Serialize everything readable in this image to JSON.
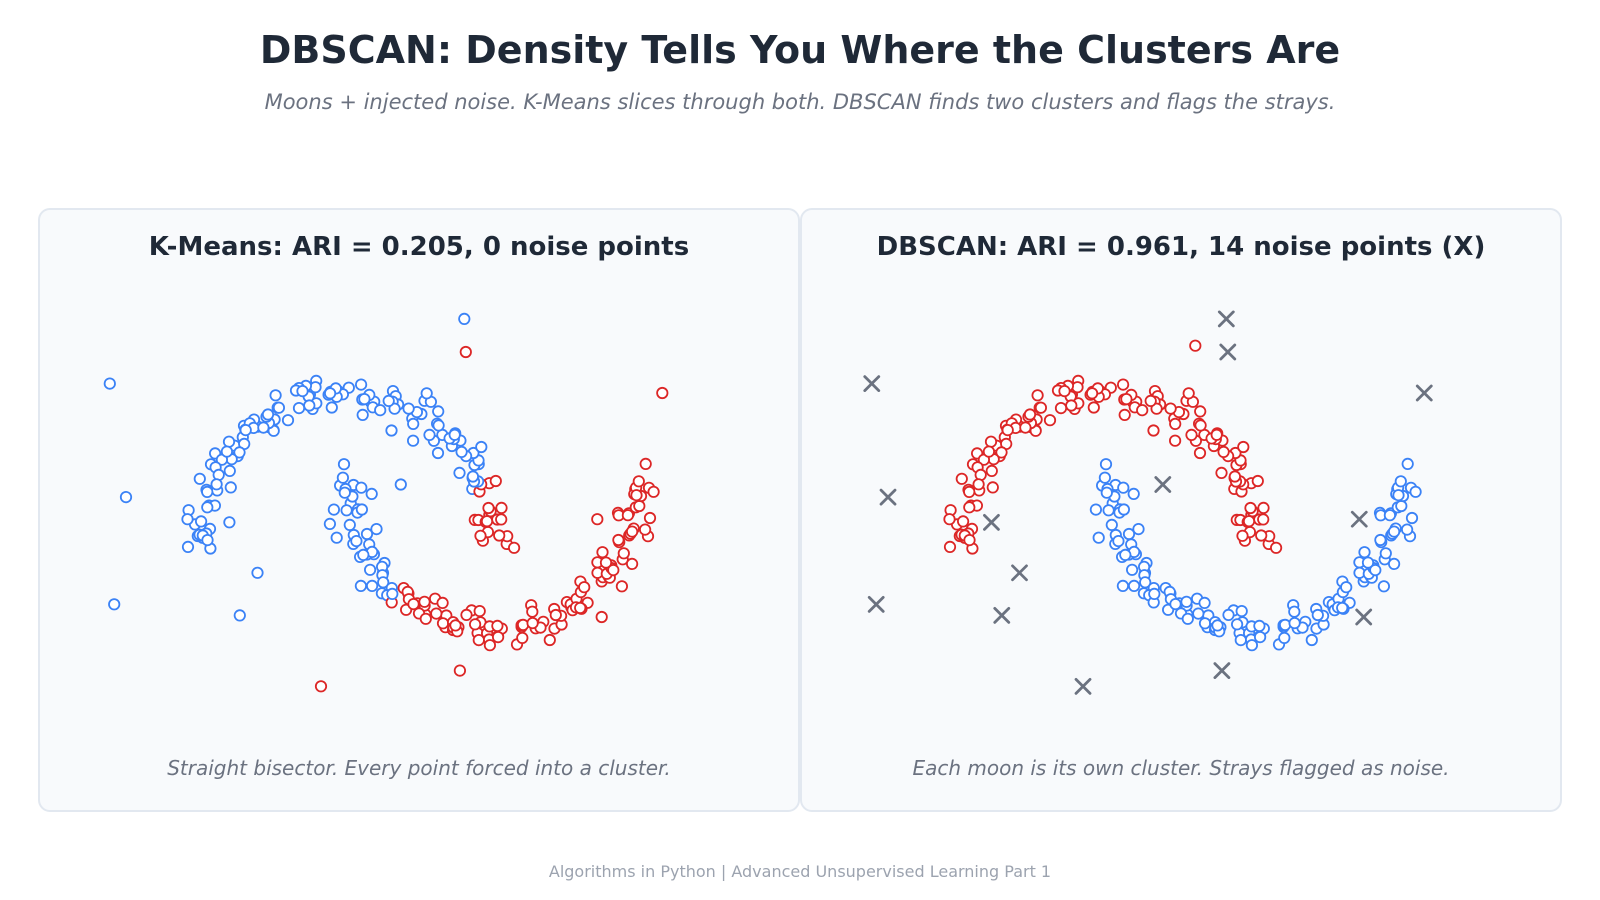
{
  "page": {
    "title": "DBSCAN: Density Tells You Where the Clusters Are",
    "subtitle": "Moons + injected noise. K-Means slices through both. DBSCAN finds two clusters and flags the strays.",
    "footer": "Algorithms in Python  |  Advanced Unsupervised Learning Part 1"
  },
  "colors": {
    "blue": "#3b82f6",
    "red": "#dc2626",
    "noise": "#6b7280"
  },
  "chart_data": [
    {
      "type": "scatter",
      "title": "K-Means: ARI = 0.205, 0 noise points",
      "caption": "Straight bisector. Every point forced into a cluster.",
      "xlim": [
        -1.7,
        2.7
      ],
      "ylim": [
        -1.0,
        1.6
      ],
      "grid": false,
      "legend": "none",
      "moons": {
        "upper": {
          "center": [
            0,
            0
          ],
          "radius": 1,
          "count": 150
        },
        "lower": {
          "center": [
            1,
            0.5
          ],
          "radius": 1,
          "count": 150
        }
      },
      "rule": "side-of-line",
      "points": [
        {
          "x": -1.6,
          "y": 1.07,
          "c": "blue"
        },
        {
          "x": -1.49,
          "y": 0.35,
          "c": "blue"
        },
        {
          "x": -1.57,
          "y": -0.33,
          "c": "blue"
        },
        {
          "x": -0.79,
          "y": 0.19,
          "c": "blue"
        },
        {
          "x": -0.72,
          "y": -0.4,
          "c": "blue"
        },
        {
          "x": -0.6,
          "y": -0.13,
          "c": "blue"
        },
        {
          "x": -0.11,
          "y": 0.18,
          "c": "blue"
        },
        {
          "x": 0.37,
          "y": 0.43,
          "c": "blue"
        },
        {
          "x": 0.8,
          "y": 1.48,
          "c": "blue"
        },
        {
          "x": 0.81,
          "y": 1.27,
          "c": "red"
        },
        {
          "x": 2.14,
          "y": 1.01,
          "c": "red"
        },
        {
          "x": 1.7,
          "y": 0.21,
          "c": "red"
        },
        {
          "x": 1.73,
          "y": -0.41,
          "c": "red"
        },
        {
          "x": 0.77,
          "y": -0.75,
          "c": "red"
        },
        {
          "x": -0.17,
          "y": -0.85,
          "c": "red"
        }
      ]
    },
    {
      "type": "scatter",
      "title": "DBSCAN: ARI = 0.961, 14 noise points (X)",
      "caption": "Each moon is its own cluster. Strays flagged as noise.",
      "xlim": [
        -1.7,
        2.7
      ],
      "ylim": [
        -1.0,
        1.6
      ],
      "grid": false,
      "legend": "none",
      "moons": {
        "upper": {
          "center": [
            0,
            0
          ],
          "radius": 1,
          "count": 150
        },
        "lower": {
          "center": [
            1,
            0.5
          ],
          "radius": 1,
          "count": 150
        }
      },
      "rule": "moon",
      "points": [
        {
          "x": 0.59,
          "y": 1.31,
          "c": "red"
        }
      ],
      "noise": [
        {
          "x": 0.8,
          "y": 1.48
        },
        {
          "x": 0.81,
          "y": 1.27
        },
        {
          "x": -1.6,
          "y": 1.07
        },
        {
          "x": 2.14,
          "y": 1.01
        },
        {
          "x": -1.49,
          "y": 0.35
        },
        {
          "x": 0.37,
          "y": 0.43
        },
        {
          "x": -0.79,
          "y": 0.19
        },
        {
          "x": 1.7,
          "y": 0.21
        },
        {
          "x": -0.6,
          "y": -0.13
        },
        {
          "x": -1.57,
          "y": -0.33
        },
        {
          "x": -0.72,
          "y": -0.4
        },
        {
          "x": 1.73,
          "y": -0.41
        },
        {
          "x": 0.77,
          "y": -0.75
        },
        {
          "x": -0.17,
          "y": -0.85
        }
      ]
    }
  ]
}
